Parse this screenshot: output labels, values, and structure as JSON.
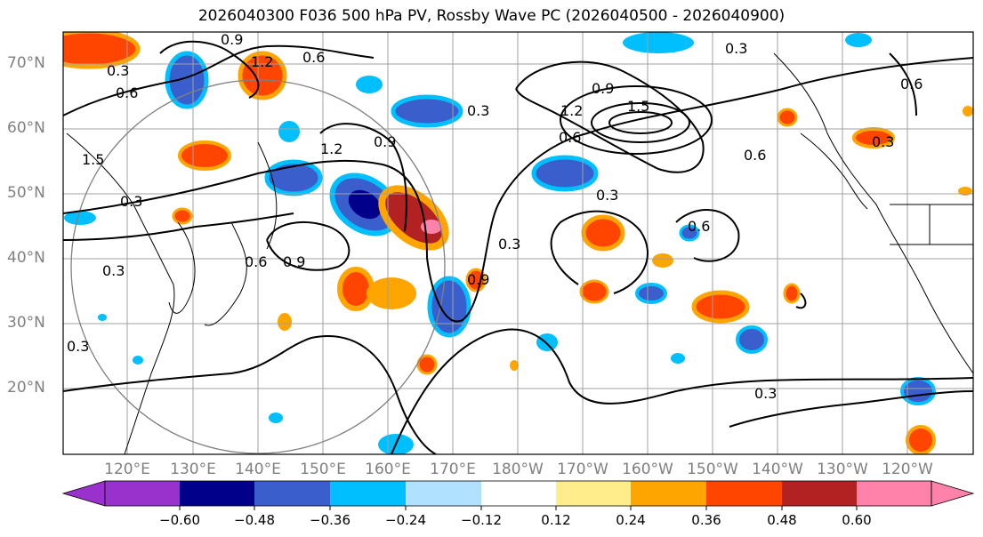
{
  "title": "2026040300 F036 500 hPa PV, Rossby Wave PC (2026040500 - 2026040900)",
  "lat_labels": [
    "70°N",
    "60°N",
    "50°N",
    "40°N",
    "30°N",
    "20°N"
  ],
  "lon_labels": [
    "120°E",
    "130°E",
    "140°E",
    "150°E",
    "160°E",
    "170°E",
    "180°W",
    "170°W",
    "160°W",
    "150°W",
    "140°W",
    "130°W",
    "120°W"
  ],
  "contour_labels": [
    "0.3",
    "0.6",
    "0.9",
    "1.2",
    "1.5",
    "0.3",
    "0.9",
    "1.2",
    "0.6",
    "0.3",
    "0.6",
    "0.3",
    "0.6",
    "0.9",
    "1.2",
    "0.6",
    "0.3",
    "0.9",
    "0.3",
    "0.6",
    "0.3",
    "0.6",
    "0.3",
    "0.6",
    "0.3"
  ],
  "colorbar": {
    "ticks": [
      "−0.60",
      "−0.48",
      "−0.36",
      "−0.24",
      "−0.12",
      "0.12",
      "0.24",
      "0.36",
      "0.48",
      "0.60"
    ],
    "colors": [
      "#9932cc",
      "#00008b",
      "#3a5fcd",
      "#00bfff",
      "#b0e2ff",
      "#ffffff",
      "#ffec8b",
      "#ffa500",
      "#ff4500",
      "#b22222",
      "#ff82ab"
    ]
  }
}
